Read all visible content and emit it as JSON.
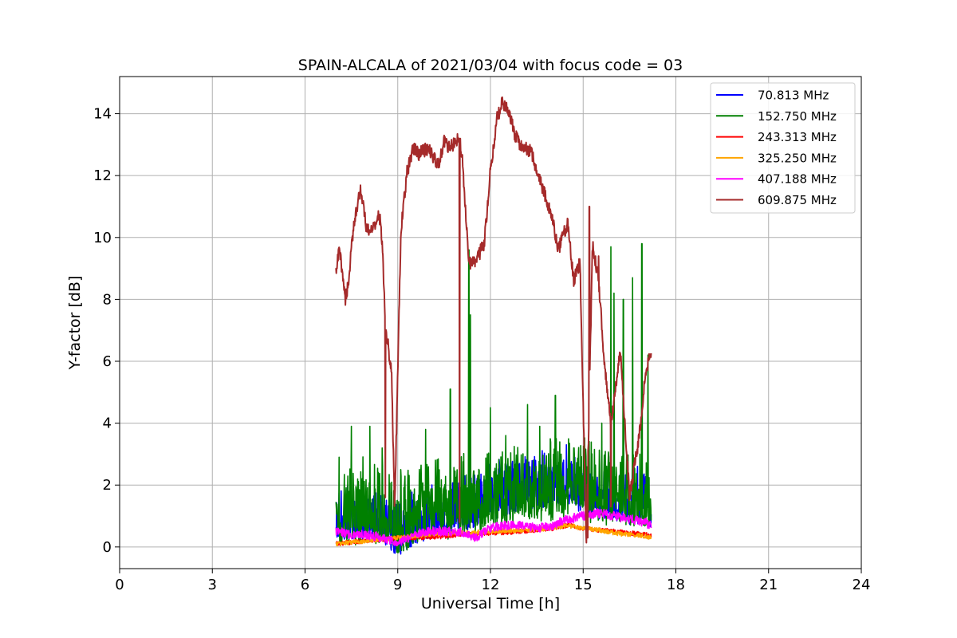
{
  "chart_data": {
    "type": "line",
    "title": "SPAIN-ALCALA of 2021/03/04 with focus code = 03",
    "xlabel": "Universal Time [h]",
    "ylabel": "Y-factor [dB]",
    "xlim": [
      0,
      24
    ],
    "ylim": [
      -0.7,
      15.2
    ],
    "xticks": [
      0,
      3,
      6,
      9,
      12,
      15,
      18,
      21,
      24
    ],
    "yticks": [
      0,
      2,
      4,
      6,
      8,
      10,
      12,
      14
    ],
    "grid": true,
    "legend_position": "top-right",
    "series": [
      {
        "name": " 70.813 MHz",
        "color": "#0000ff",
        "x": [
          7.0,
          7.5,
          8.0,
          8.5,
          9.0,
          9.5,
          10.0,
          10.5,
          11.0,
          11.5,
          12.0,
          12.5,
          13.0,
          13.5,
          14.0,
          14.5,
          15.0,
          15.5,
          16.0,
          16.5,
          17.0,
          17.2
        ],
        "y": [
          0.4,
          0.5,
          0.6,
          0.5,
          0.1,
          0.4,
          0.6,
          0.7,
          0.8,
          0.9,
          1.2,
          1.4,
          1.5,
          1.6,
          1.7,
          1.8,
          1.4,
          1.3,
          1.2,
          1.1,
          1.0,
          1.0
        ],
        "noise": 1.6
      },
      {
        "name": "152.750 MHz",
        "color": "#008000",
        "x": [
          7.0,
          7.5,
          8.0,
          8.5,
          9.0,
          9.5,
          10.0,
          10.5,
          11.0,
          11.3,
          11.5,
          12.0,
          12.5,
          13.0,
          13.5,
          14.0,
          14.5,
          15.0,
          15.5,
          16.0,
          16.5,
          17.0,
          17.2
        ],
        "y": [
          0.5,
          0.6,
          0.7,
          0.6,
          0.3,
          0.5,
          0.7,
          0.8,
          0.9,
          1.0,
          1.0,
          1.1,
          1.2,
          1.3,
          1.3,
          1.4,
          1.5,
          1.4,
          1.3,
          1.2,
          1.2,
          1.1,
          1.0
        ],
        "noise": 2.3,
        "spikes": [
          [
            7.1,
            2.9
          ],
          [
            7.5,
            3.9
          ],
          [
            8.1,
            3.9
          ],
          [
            8.5,
            3.2
          ],
          [
            9.1,
            2.5
          ],
          [
            9.9,
            3.8
          ],
          [
            10.7,
            5.1
          ],
          [
            11.3,
            9.6
          ],
          [
            11.35,
            7.5
          ],
          [
            12.0,
            4.5
          ],
          [
            12.5,
            3.6
          ],
          [
            13.2,
            4.6
          ],
          [
            13.6,
            3.9
          ],
          [
            14.1,
            4.9
          ],
          [
            14.7,
            3.2
          ],
          [
            15.6,
            4.0
          ],
          [
            15.9,
            9.7
          ],
          [
            16.0,
            8.2
          ],
          [
            16.3,
            8.0
          ],
          [
            16.6,
            8.7
          ],
          [
            16.9,
            9.8
          ],
          [
            17.1,
            6.2
          ]
        ]
      },
      {
        "name": "243.313 MHz",
        "color": "#ff0000",
        "x": [
          7.0,
          8.0,
          9.0,
          10.0,
          11.0,
          12.0,
          13.0,
          14.0,
          14.5,
          15.0,
          16.0,
          17.0,
          17.2
        ],
        "y": [
          0.1,
          0.2,
          0.3,
          0.3,
          0.4,
          0.45,
          0.5,
          0.6,
          0.7,
          0.6,
          0.5,
          0.4,
          0.35
        ],
        "noise": 0.15
      },
      {
        "name": "325.250 MHz",
        "color": "#ffa500",
        "x": [
          7.0,
          8.0,
          9.0,
          10.0,
          11.0,
          12.0,
          13.0,
          14.0,
          14.5,
          15.0,
          15.5,
          16.0,
          17.0,
          17.2
        ],
        "y": [
          0.1,
          0.2,
          0.3,
          0.4,
          0.45,
          0.5,
          0.55,
          0.6,
          0.7,
          0.6,
          0.55,
          0.45,
          0.35,
          0.3
        ],
        "noise": 0.15
      },
      {
        "name": "407.188 MHz",
        "color": "#ff00ff",
        "x": [
          7.0,
          7.5,
          8.0,
          8.5,
          9.0,
          9.5,
          10.0,
          10.5,
          11.0,
          11.5,
          12.0,
          12.5,
          13.0,
          13.5,
          14.0,
          14.5,
          15.0,
          15.5,
          16.0,
          16.5,
          17.0,
          17.2
        ],
        "y": [
          0.5,
          0.4,
          0.4,
          0.3,
          0.1,
          0.4,
          0.5,
          0.5,
          0.5,
          0.3,
          0.6,
          0.7,
          0.7,
          0.6,
          0.7,
          0.9,
          1.0,
          1.1,
          1.0,
          0.9,
          0.8,
          0.7
        ],
        "noise": 0.3
      },
      {
        "name": "609.875 MHz",
        "color": "#a52a2a",
        "x": [
          7.0,
          7.1,
          7.2,
          7.3,
          7.4,
          7.5,
          7.6,
          7.8,
          8.0,
          8.2,
          8.4,
          8.5,
          8.6,
          8.8,
          8.9,
          9.0,
          9.1,
          9.3,
          9.5,
          9.7,
          10.0,
          10.3,
          10.5,
          10.7,
          11.0,
          11.1,
          11.3,
          11.5,
          11.8,
          12.0,
          12.2,
          12.4,
          12.6,
          12.8,
          13.0,
          13.3,
          13.6,
          13.8,
          14.0,
          14.2,
          14.5,
          14.7,
          14.9,
          15.1,
          15.3,
          15.5,
          15.7,
          15.9,
          16.2,
          16.5,
          16.8,
          17.0,
          17.2
        ],
        "y": [
          8.8,
          9.6,
          9.0,
          8.0,
          8.5,
          9.6,
          10.6,
          11.6,
          10.2,
          10.3,
          10.8,
          9.8,
          7.2,
          5.6,
          1.2,
          5.6,
          10.2,
          12.1,
          12.9,
          12.7,
          12.9,
          12.3,
          13.1,
          12.9,
          13.2,
          12.4,
          9.2,
          9.2,
          9.8,
          12.2,
          13.8,
          14.4,
          14.0,
          13.3,
          12.9,
          12.8,
          11.8,
          11.3,
          10.6,
          9.6,
          10.5,
          8.6,
          9.2,
          0.0,
          9.8,
          8.6,
          5.8,
          4.0,
          6.4,
          1.6,
          3.5,
          5.4,
          6.4
        ],
        "noise": 0.45,
        "spikes": [
          [
            8.6,
            1.6
          ],
          [
            11.0,
            0.8
          ],
          [
            15.15,
            0.3
          ],
          [
            15.2,
            11.0
          ],
          [
            15.5,
            9.4
          ],
          [
            15.9,
            1.3
          ]
        ]
      }
    ]
  }
}
